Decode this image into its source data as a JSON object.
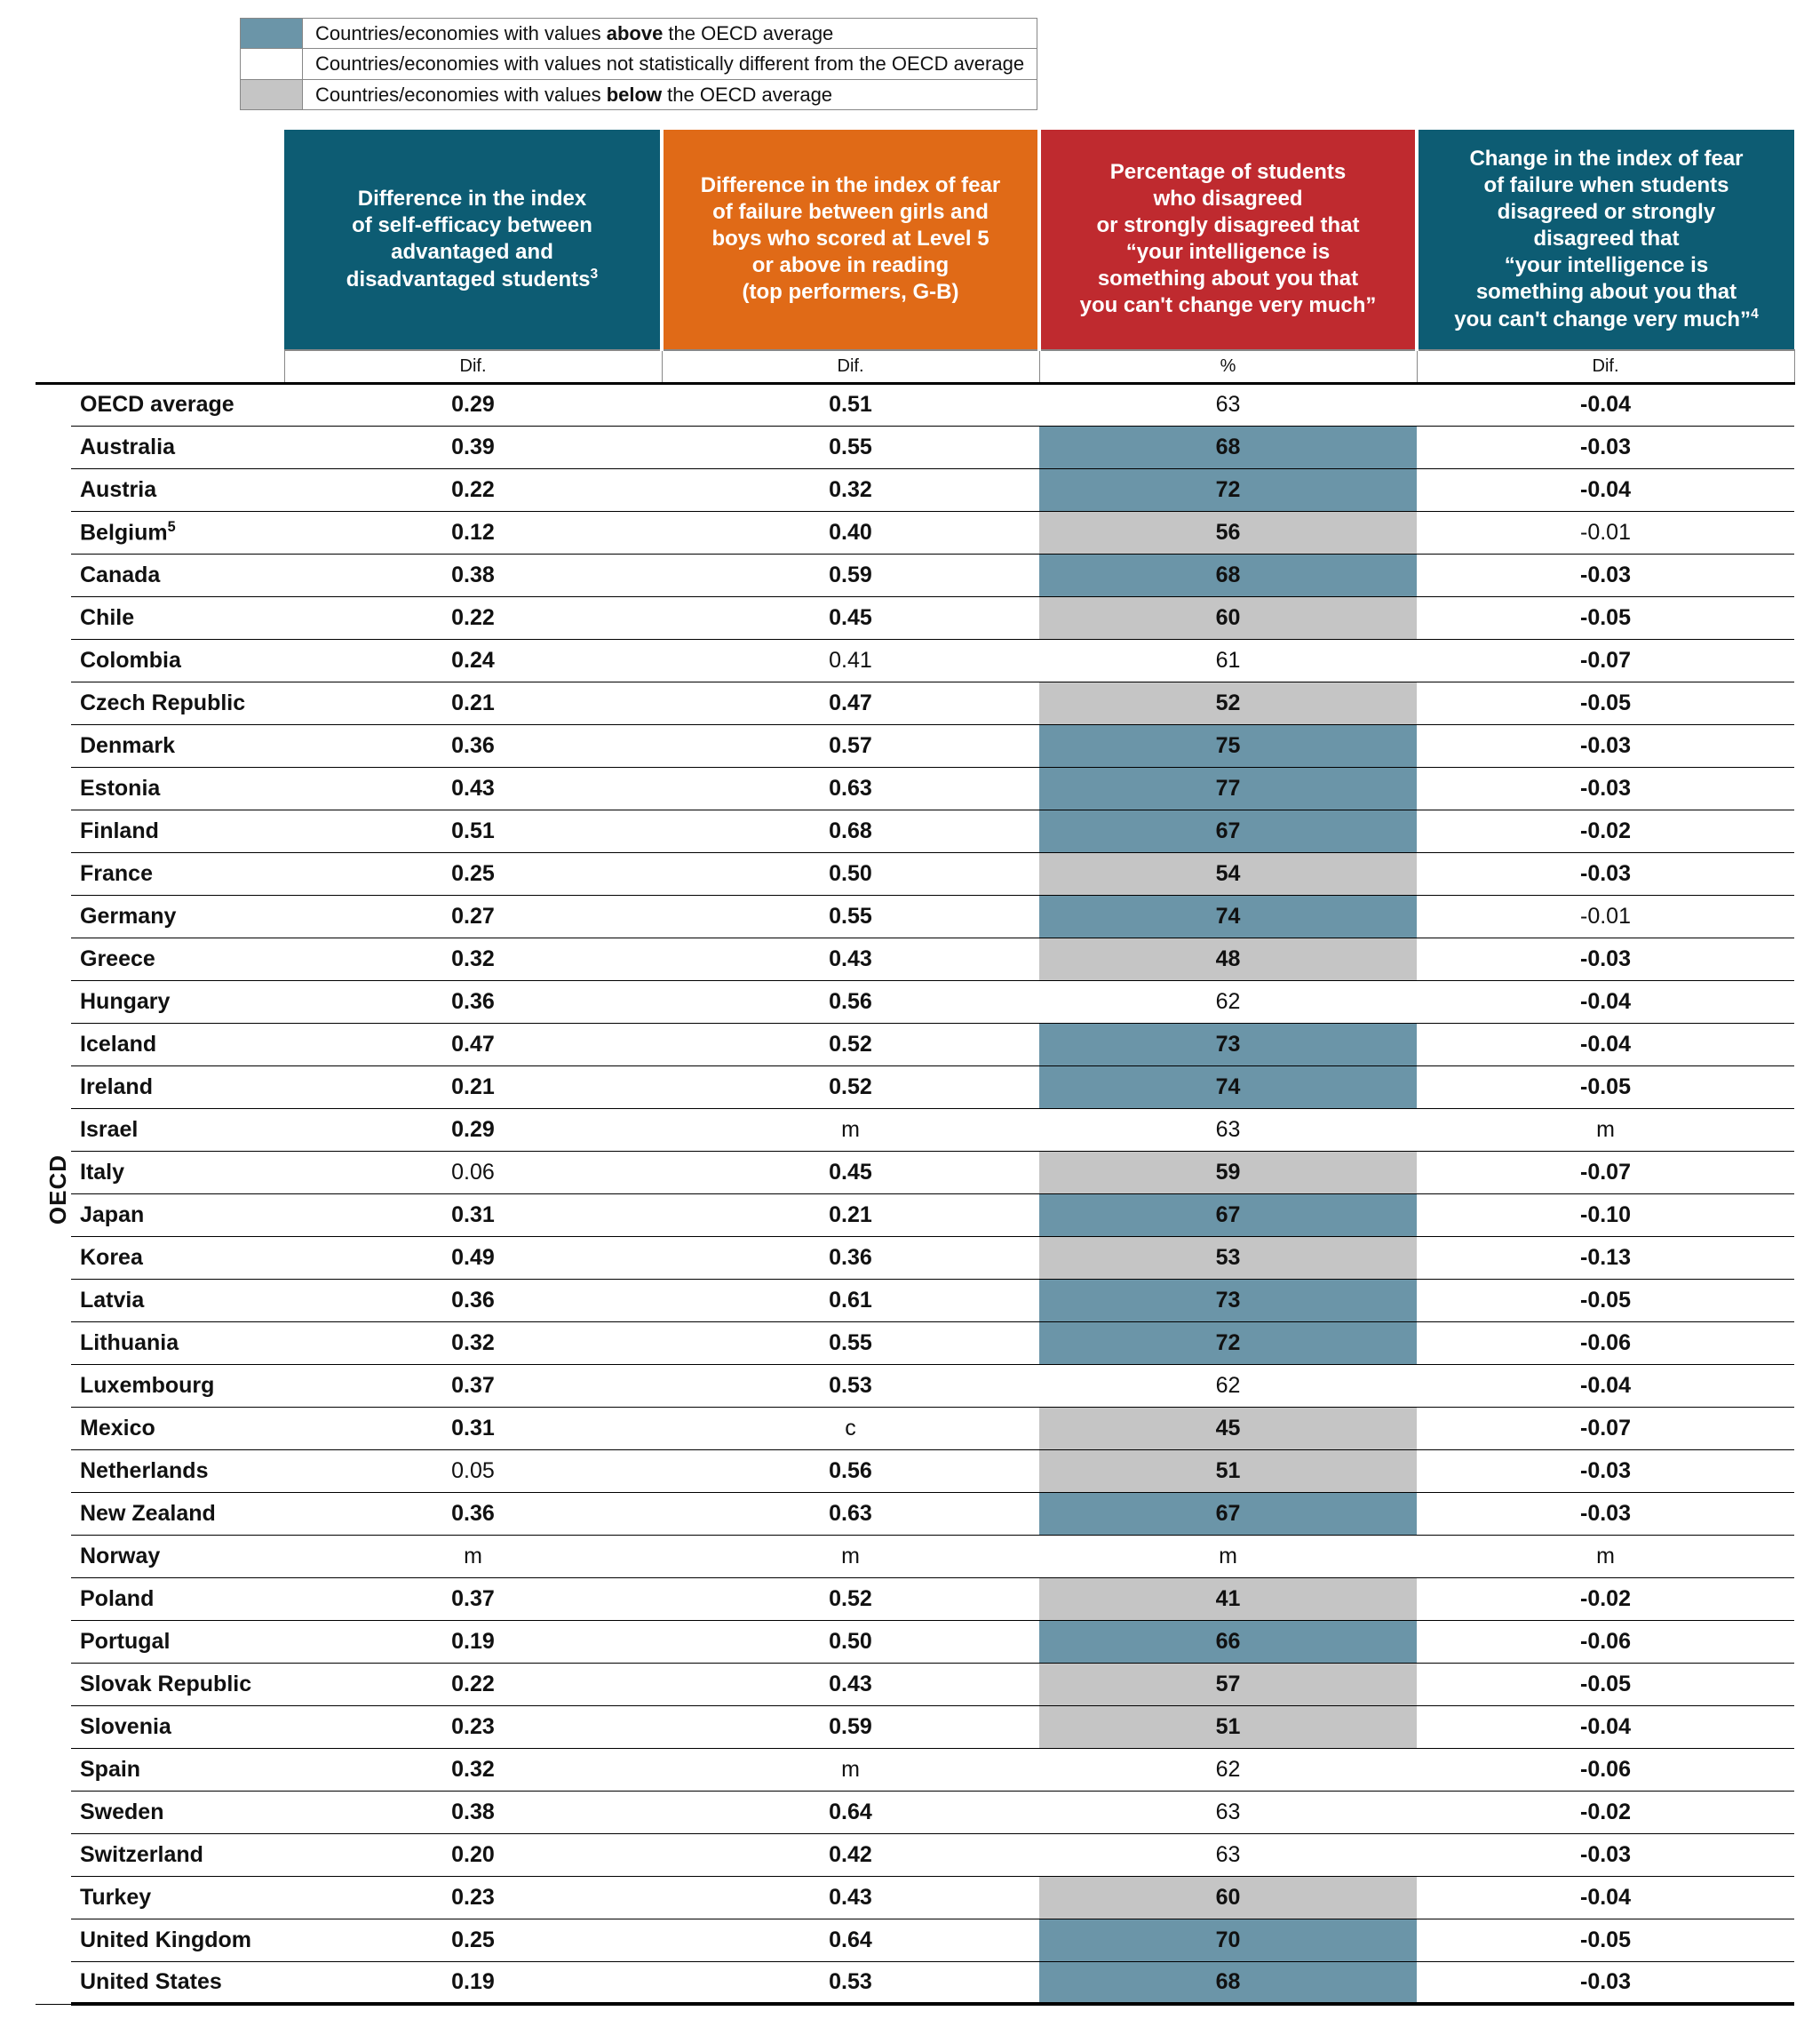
{
  "legend": {
    "above": {
      "text_pre": "Countries/economies with values ",
      "bold": "above",
      "text_post": " the OECD average",
      "color": "#6b95a8"
    },
    "same": {
      "text": "Countries/economies with values not statistically different from the OECD average",
      "color": "#ffffff"
    },
    "below": {
      "text_pre": "Countries/economies with values ",
      "bold": "below",
      "text_post": " the OECD average",
      "color": "#c5c5c5"
    }
  },
  "palette": {
    "teal": "#0d5c73",
    "orange": "#e06a17",
    "red": "#bf2a2f",
    "above": "#6b95a8",
    "below": "#c5c5c5",
    "none": "#ffffff"
  },
  "columns": [
    {
      "key": "c1",
      "bg": "teal",
      "sub": "Dif.",
      "title_html": "Difference in the index<br>of self-efficacy between<br>advantaged and<br>disadvantaged students<sup>3</sup>"
    },
    {
      "key": "c2",
      "bg": "orange",
      "sub": "Dif.",
      "title_html": "Difference in the index of fear<br>of failure between girls and<br>boys who scored at Level 5<br>or above in reading<br>(top performers, G-B)"
    },
    {
      "key": "c3",
      "bg": "red",
      "sub": "%",
      "title_html": "Percentage of students<br>who disagreed<br>or strongly disagreed that<br>&ldquo;your intelligence is<br>something about you that<br>you can't change very much&rdquo;"
    },
    {
      "key": "c4",
      "bg": "teal",
      "sub": "Dif.",
      "title_html": "Change in the index of fear<br>of failure when students<br>disagreed or strongly<br>disagreed that<br>&ldquo;your intelligence is<br>something about you that<br>you can't change very much&rdquo;<sup>4</sup>"
    }
  ],
  "side_label": "OECD",
  "rows": [
    {
      "name": "OECD average",
      "c1": {
        "v": "0.29",
        "b": true
      },
      "c2": {
        "v": "0.51",
        "b": true
      },
      "c3": {
        "v": "63"
      },
      "c4": {
        "v": "-0.04",
        "b": true
      }
    },
    {
      "name": "Australia",
      "c1": {
        "v": "0.39",
        "b": true
      },
      "c2": {
        "v": "0.55",
        "b": true
      },
      "c3": {
        "v": "68",
        "b": true,
        "hl": "above"
      },
      "c4": {
        "v": "-0.03",
        "b": true
      }
    },
    {
      "name": "Austria",
      "c1": {
        "v": "0.22",
        "b": true
      },
      "c2": {
        "v": "0.32",
        "b": true
      },
      "c3": {
        "v": "72",
        "b": true,
        "hl": "above"
      },
      "c4": {
        "v": "-0.04",
        "b": true
      }
    },
    {
      "name_html": "Belgium<sup>5</sup>",
      "c1": {
        "v": "0.12",
        "b": true
      },
      "c2": {
        "v": "0.40",
        "b": true
      },
      "c3": {
        "v": "56",
        "b": true,
        "hl": "below"
      },
      "c4": {
        "v": "-0.01"
      }
    },
    {
      "name": "Canada",
      "c1": {
        "v": "0.38",
        "b": true
      },
      "c2": {
        "v": "0.59",
        "b": true
      },
      "c3": {
        "v": "68",
        "b": true,
        "hl": "above"
      },
      "c4": {
        "v": "-0.03",
        "b": true
      }
    },
    {
      "name": "Chile",
      "c1": {
        "v": "0.22",
        "b": true
      },
      "c2": {
        "v": "0.45",
        "b": true
      },
      "c3": {
        "v": "60",
        "b": true,
        "hl": "below"
      },
      "c4": {
        "v": "-0.05",
        "b": true
      }
    },
    {
      "name": "Colombia",
      "c1": {
        "v": "0.24",
        "b": true
      },
      "c2": {
        "v": "0.41"
      },
      "c3": {
        "v": "61"
      },
      "c4": {
        "v": "-0.07",
        "b": true
      }
    },
    {
      "name": "Czech Republic",
      "c1": {
        "v": "0.21",
        "b": true
      },
      "c2": {
        "v": "0.47",
        "b": true
      },
      "c3": {
        "v": "52",
        "b": true,
        "hl": "below"
      },
      "c4": {
        "v": "-0.05",
        "b": true
      }
    },
    {
      "name": "Denmark",
      "c1": {
        "v": "0.36",
        "b": true
      },
      "c2": {
        "v": "0.57",
        "b": true
      },
      "c3": {
        "v": "75",
        "b": true,
        "hl": "above"
      },
      "c4": {
        "v": "-0.03",
        "b": true
      }
    },
    {
      "name": "Estonia",
      "c1": {
        "v": "0.43",
        "b": true
      },
      "c2": {
        "v": "0.63",
        "b": true
      },
      "c3": {
        "v": "77",
        "b": true,
        "hl": "above"
      },
      "c4": {
        "v": "-0.03",
        "b": true
      }
    },
    {
      "name": "Finland",
      "c1": {
        "v": "0.51",
        "b": true
      },
      "c2": {
        "v": "0.68",
        "b": true
      },
      "c3": {
        "v": "67",
        "b": true,
        "hl": "above"
      },
      "c4": {
        "v": "-0.02",
        "b": true
      }
    },
    {
      "name": "France",
      "c1": {
        "v": "0.25",
        "b": true
      },
      "c2": {
        "v": "0.50",
        "b": true
      },
      "c3": {
        "v": "54",
        "b": true,
        "hl": "below"
      },
      "c4": {
        "v": "-0.03",
        "b": true
      }
    },
    {
      "name": "Germany",
      "c1": {
        "v": "0.27",
        "b": true
      },
      "c2": {
        "v": "0.55",
        "b": true
      },
      "c3": {
        "v": "74",
        "b": true,
        "hl": "above"
      },
      "c4": {
        "v": "-0.01"
      }
    },
    {
      "name": "Greece",
      "c1": {
        "v": "0.32",
        "b": true
      },
      "c2": {
        "v": "0.43",
        "b": true
      },
      "c3": {
        "v": "48",
        "b": true,
        "hl": "below"
      },
      "c4": {
        "v": "-0.03",
        "b": true
      }
    },
    {
      "name": "Hungary",
      "c1": {
        "v": "0.36",
        "b": true
      },
      "c2": {
        "v": "0.56",
        "b": true
      },
      "c3": {
        "v": "62"
      },
      "c4": {
        "v": "-0.04",
        "b": true
      }
    },
    {
      "name": "Iceland",
      "c1": {
        "v": "0.47",
        "b": true
      },
      "c2": {
        "v": "0.52",
        "b": true
      },
      "c3": {
        "v": "73",
        "b": true,
        "hl": "above"
      },
      "c4": {
        "v": "-0.04",
        "b": true
      }
    },
    {
      "name": "Ireland",
      "c1": {
        "v": "0.21",
        "b": true
      },
      "c2": {
        "v": "0.52",
        "b": true
      },
      "c3": {
        "v": "74",
        "b": true,
        "hl": "above"
      },
      "c4": {
        "v": "-0.05",
        "b": true
      }
    },
    {
      "name": "Israel",
      "c1": {
        "v": "0.29",
        "b": true
      },
      "c2": {
        "v": "m"
      },
      "c3": {
        "v": "63"
      },
      "c4": {
        "v": "m"
      }
    },
    {
      "name": "Italy",
      "c1": {
        "v": "0.06"
      },
      "c2": {
        "v": "0.45",
        "b": true
      },
      "c3": {
        "v": "59",
        "b": true,
        "hl": "below"
      },
      "c4": {
        "v": "-0.07",
        "b": true
      }
    },
    {
      "name": "Japan",
      "c1": {
        "v": "0.31",
        "b": true
      },
      "c2": {
        "v": "0.21",
        "b": true
      },
      "c3": {
        "v": "67",
        "b": true,
        "hl": "above"
      },
      "c4": {
        "v": "-0.10",
        "b": true
      }
    },
    {
      "name": "Korea",
      "c1": {
        "v": "0.49",
        "b": true
      },
      "c2": {
        "v": "0.36",
        "b": true
      },
      "c3": {
        "v": "53",
        "b": true,
        "hl": "below"
      },
      "c4": {
        "v": "-0.13",
        "b": true
      }
    },
    {
      "name": "Latvia",
      "c1": {
        "v": "0.36",
        "b": true
      },
      "c2": {
        "v": "0.61",
        "b": true
      },
      "c3": {
        "v": "73",
        "b": true,
        "hl": "above"
      },
      "c4": {
        "v": "-0.05",
        "b": true
      }
    },
    {
      "name": "Lithuania",
      "c1": {
        "v": "0.32",
        "b": true
      },
      "c2": {
        "v": "0.55",
        "b": true
      },
      "c3": {
        "v": "72",
        "b": true,
        "hl": "above"
      },
      "c4": {
        "v": "-0.06",
        "b": true
      }
    },
    {
      "name": "Luxembourg",
      "c1": {
        "v": "0.37",
        "b": true
      },
      "c2": {
        "v": "0.53",
        "b": true
      },
      "c3": {
        "v": "62"
      },
      "c4": {
        "v": "-0.04",
        "b": true
      }
    },
    {
      "name": "Mexico",
      "c1": {
        "v": "0.31",
        "b": true
      },
      "c2": {
        "v": "c"
      },
      "c3": {
        "v": "45",
        "b": true,
        "hl": "below"
      },
      "c4": {
        "v": "-0.07",
        "b": true
      }
    },
    {
      "name": "Netherlands",
      "c1": {
        "v": "0.05"
      },
      "c2": {
        "v": "0.56",
        "b": true
      },
      "c3": {
        "v": "51",
        "b": true,
        "hl": "below"
      },
      "c4": {
        "v": "-0.03",
        "b": true
      }
    },
    {
      "name": "New Zealand",
      "c1": {
        "v": "0.36",
        "b": true
      },
      "c2": {
        "v": "0.63",
        "b": true
      },
      "c3": {
        "v": "67",
        "b": true,
        "hl": "above"
      },
      "c4": {
        "v": "-0.03",
        "b": true
      }
    },
    {
      "name": "Norway",
      "c1": {
        "v": "m"
      },
      "c2": {
        "v": "m"
      },
      "c3": {
        "v": "m"
      },
      "c4": {
        "v": "m"
      }
    },
    {
      "name": "Poland",
      "c1": {
        "v": "0.37",
        "b": true
      },
      "c2": {
        "v": "0.52",
        "b": true
      },
      "c3": {
        "v": "41",
        "b": true,
        "hl": "below"
      },
      "c4": {
        "v": "-0.02",
        "b": true
      }
    },
    {
      "name": "Portugal",
      "c1": {
        "v": "0.19",
        "b": true
      },
      "c2": {
        "v": "0.50",
        "b": true
      },
      "c3": {
        "v": "66",
        "b": true,
        "hl": "above"
      },
      "c4": {
        "v": "-0.06",
        "b": true
      }
    },
    {
      "name": "Slovak Republic",
      "c1": {
        "v": "0.22",
        "b": true
      },
      "c2": {
        "v": "0.43",
        "b": true
      },
      "c3": {
        "v": "57",
        "b": true,
        "hl": "below"
      },
      "c4": {
        "v": "-0.05",
        "b": true
      }
    },
    {
      "name": "Slovenia",
      "c1": {
        "v": "0.23",
        "b": true
      },
      "c2": {
        "v": "0.59",
        "b": true
      },
      "c3": {
        "v": "51",
        "b": true,
        "hl": "below"
      },
      "c4": {
        "v": "-0.04",
        "b": true
      }
    },
    {
      "name": "Spain",
      "c1": {
        "v": "0.32",
        "b": true
      },
      "c2": {
        "v": "m"
      },
      "c3": {
        "v": "62"
      },
      "c4": {
        "v": "-0.06",
        "b": true
      }
    },
    {
      "name": "Sweden",
      "c1": {
        "v": "0.38",
        "b": true
      },
      "c2": {
        "v": "0.64",
        "b": true
      },
      "c3": {
        "v": "63"
      },
      "c4": {
        "v": "-0.02",
        "b": true
      }
    },
    {
      "name": "Switzerland",
      "c1": {
        "v": "0.20",
        "b": true
      },
      "c2": {
        "v": "0.42",
        "b": true
      },
      "c3": {
        "v": "63"
      },
      "c4": {
        "v": "-0.03",
        "b": true
      }
    },
    {
      "name": "Turkey",
      "c1": {
        "v": "0.23",
        "b": true
      },
      "c2": {
        "v": "0.43",
        "b": true
      },
      "c3": {
        "v": "60",
        "b": true,
        "hl": "below"
      },
      "c4": {
        "v": "-0.04",
        "b": true
      }
    },
    {
      "name": "United Kingdom",
      "c1": {
        "v": "0.25",
        "b": true
      },
      "c2": {
        "v": "0.64",
        "b": true
      },
      "c3": {
        "v": "70",
        "b": true,
        "hl": "above"
      },
      "c4": {
        "v": "-0.05",
        "b": true
      }
    },
    {
      "name": "United States",
      "c1": {
        "v": "0.19",
        "b": true
      },
      "c2": {
        "v": "0.53",
        "b": true
      },
      "c3": {
        "v": "68",
        "b": true,
        "hl": "above"
      },
      "c4": {
        "v": "-0.03",
        "b": true
      }
    }
  ]
}
